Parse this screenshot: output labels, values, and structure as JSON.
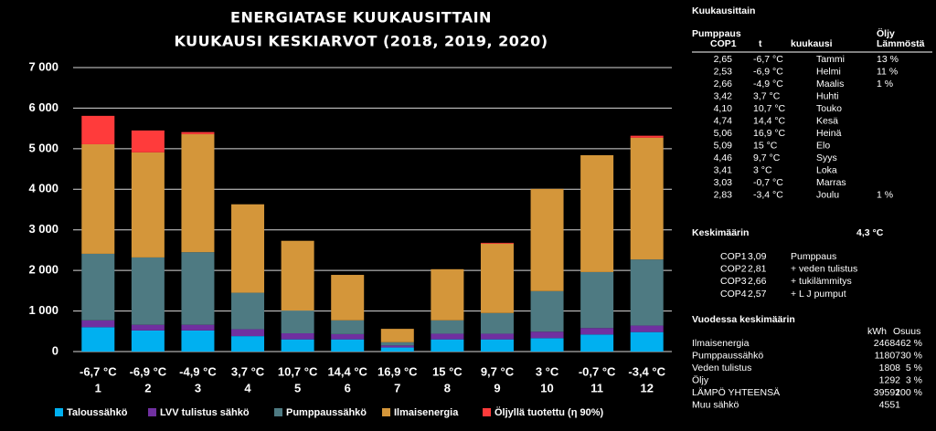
{
  "chart_data": {
    "type": "stacked_bar",
    "title": [
      "ENERGIATASE  KUUKAUSITTAIN",
      "KUUKAUSI KESKIARVOT (2018, 2019, 2020)"
    ],
    "categories": [
      "1",
      "2",
      "3",
      "4",
      "5",
      "6",
      "7",
      "8",
      "9",
      "10",
      "11",
      "12"
    ],
    "category_temps": [
      "-6,7 °C",
      "-6,9 °C",
      "-4,9 °C",
      "3,7 °C",
      "10,7 °C",
      "14,4 °C",
      "16,9 °C",
      "15 °C",
      "9,7 °C",
      "3 °C",
      "-0,7 °C",
      "-3,4 °C"
    ],
    "series": [
      {
        "name": "Taloussähkö",
        "color": "#00b0f0",
        "values": [
          600,
          520,
          520,
          380,
          300,
          300,
          100,
          300,
          300,
          330,
          420,
          480
        ]
      },
      {
        "name": "LVV tulistus sähkö",
        "color": "#7030a0",
        "values": [
          170,
          140,
          140,
          170,
          150,
          130,
          50,
          140,
          140,
          160,
          160,
          160
        ]
      },
      {
        "name": "Pumppaussähkö",
        "color": "#4e7a82",
        "values": [
          1640,
          1660,
          1790,
          900,
          560,
          340,
          80,
          330,
          510,
          1000,
          1380,
          1630
        ]
      },
      {
        "name": "Ilmaisenergia",
        "color": "#d4963a",
        "values": [
          2700,
          2590,
          2910,
          2180,
          1720,
          1120,
          330,
          1260,
          1710,
          2520,
          2880,
          3000
        ]
      },
      {
        "name": "Öljyllä tuotettu (η 90%)",
        "color": "#ff3b3b",
        "values": [
          700,
          540,
          50,
          0,
          0,
          0,
          0,
          0,
          20,
          0,
          0,
          50
        ]
      }
    ],
    "ylim": [
      0,
      7000
    ],
    "yticks": [
      0,
      {
        "value": 1000,
        "label": "1 000"
      },
      {
        "value": 2000,
        "label": "2 000"
      },
      {
        "value": 3000,
        "label": "3 000"
      },
      {
        "value": 4000,
        "label": "4 000"
      },
      {
        "value": 5000,
        "label": "5 000"
      },
      {
        "value": 6000,
        "label": "6 000"
      },
      {
        "value": 7000,
        "label": "7 000"
      }
    ],
    "grid": true
  },
  "side_panel": {
    "heading": "Kuukausittain",
    "monthly_headers": [
      [
        "Pumppaus",
        "COP1"
      ],
      [
        "t"
      ],
      [
        "kuukausi"
      ],
      [
        "Öljy",
        "Lämmöstä"
      ]
    ],
    "monthly_rows": [
      [
        "2,65",
        "-6,7 °C",
        "Tammi",
        "13 %"
      ],
      [
        "2,53",
        "-6,9 °C",
        "Helmi",
        "11 %"
      ],
      [
        "2,66",
        "-4,9 °C",
        "Maalis",
        "1 %"
      ],
      [
        "3,42",
        "3,7 °C",
        "Huhti"
      ],
      [
        "4,10",
        "10,7 °C",
        "Touko"
      ],
      [
        "4,74",
        "14,4 °C",
        "Kesä"
      ],
      [
        "5,06",
        "16,9 °C",
        "Heinä"
      ],
      [
        "5,09",
        "15 °C",
        "Elo"
      ],
      [
        "4,46",
        "9,7 °C",
        "Syys"
      ],
      [
        "3,41",
        "3 °C",
        "Loka"
      ],
      [
        "3,03",
        "-0,7 °C",
        "Marras"
      ],
      [
        "2,83",
        "-3,4 °C",
        "Joulu",
        "1 %"
      ]
    ],
    "average_label": "Keskimäärin",
    "average_temp": "4,3 °C",
    "cop_rows": [
      [
        "COP1",
        "3,09",
        "Pumppaus"
      ],
      [
        "COP2",
        "2,81",
        " + veden tulistus"
      ],
      [
        "COP3",
        "2,66",
        " + tukilämmitys"
      ],
      [
        "COP4",
        "2,57",
        "+ L J  pumput"
      ]
    ],
    "yearly_heading": "Vuodessa keskimäärin",
    "yearly_headers": [
      "kWh",
      "Osuus"
    ],
    "yearly_rows": [
      [
        "Ilmaisenergia",
        "24684",
        "62 %"
      ],
      [
        "Pumppaussähkö",
        "11807",
        "30 %"
      ],
      [
        "Veden tulistus",
        "1808",
        "5 %"
      ],
      [
        "Öljy",
        "1292",
        "3 %"
      ],
      [
        "LÄMPÖ YHTEENSÄ",
        "39592",
        "100 %"
      ],
      [
        "Muu sähkö",
        "4551"
      ]
    ]
  }
}
